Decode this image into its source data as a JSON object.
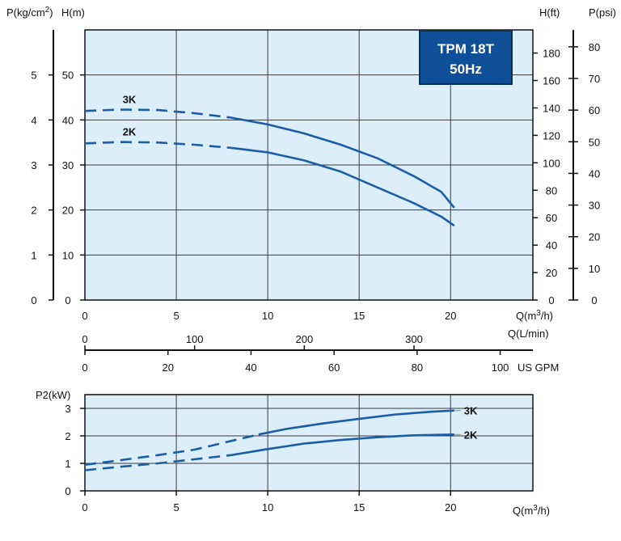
{
  "colors": {
    "plot_bg": "#dceefa",
    "grid": "#3a3a3a",
    "curve": "#1a5ea8",
    "badge_bg": "#0f4f98",
    "axis": "#111111"
  },
  "badge": {
    "model": "TPM 18T",
    "frequency": "50Hz"
  },
  "chart_data": [
    {
      "type": "line",
      "name_hint": "head-curve",
      "xlabel": "Q(m3/h)",
      "x_ticks": [
        0,
        5,
        10,
        15,
        20
      ],
      "xlim": [
        0,
        24.5
      ],
      "left_axes": [
        {
          "title": "P(kg/cm2)",
          "ticks": [
            0,
            1,
            2,
            3,
            4,
            5
          ],
          "range": [
            0,
            6
          ]
        },
        {
          "title": "H(m)",
          "ticks": [
            0,
            10,
            20,
            30,
            40,
            50
          ],
          "range": [
            0,
            60
          ]
        }
      ],
      "right_axes": [
        {
          "title": "H(ft)",
          "ticks": [
            0,
            20,
            40,
            60,
            80,
            100,
            120,
            140,
            160,
            180
          ],
          "range": [
            0,
            196.85
          ]
        },
        {
          "title": "P(psi)",
          "ticks": [
            0,
            10,
            20,
            30,
            40,
            50,
            60,
            70,
            80
          ],
          "range": [
            0,
            85.34
          ]
        }
      ],
      "secondary_x_axes": [
        {
          "unit": "Q(L/min)",
          "ticks": [
            0,
            100,
            200,
            300
          ]
        },
        {
          "unit": "US GPM",
          "ticks": [
            0,
            20,
            40,
            60,
            80,
            100
          ]
        }
      ],
      "grid": true,
      "series": [
        {
          "name": "3K",
          "dashed": {
            "x": [
              0,
              2,
              4,
              6,
              8
            ],
            "y": [
              42,
              42.3,
              42.2,
              41.5,
              40.5
            ]
          },
          "solid": {
            "x": [
              8,
              10,
              12,
              14,
              16,
              18,
              19.5,
              20.2
            ],
            "y": [
              40.5,
              39,
              37,
              34.5,
              31.5,
              27.5,
              24,
              20.5
            ]
          }
        },
        {
          "name": "2K",
          "dashed": {
            "x": [
              0,
              2,
              4,
              6,
              8
            ],
            "y": [
              34.8,
              35.1,
              35,
              34.5,
              33.8
            ]
          },
          "solid": {
            "x": [
              8,
              10,
              12,
              14,
              16,
              18,
              19.5,
              20.2
            ],
            "y": [
              33.8,
              32.8,
              31,
              28.5,
              25,
              21.5,
              18.5,
              16.5
            ]
          }
        }
      ]
    },
    {
      "type": "line",
      "name_hint": "power-curve",
      "xlabel": "Q(m3/h)",
      "ylabel": "P2(kW)",
      "x_ticks": [
        0,
        5,
        10,
        15,
        20
      ],
      "xlim": [
        0,
        24.5
      ],
      "y_ticks": [
        0,
        1,
        2,
        3
      ],
      "ylim": [
        0,
        3.5
      ],
      "grid": true,
      "series": [
        {
          "name": "3K",
          "dashed": {
            "x": [
              0,
              2,
              4,
              6,
              9.5
            ],
            "y": [
              0.95,
              1.12,
              1.3,
              1.5,
              2.05
            ]
          },
          "solid": {
            "x": [
              9.5,
              11,
              13,
              15,
              17,
              19,
              20.2
            ],
            "y": [
              2.05,
              2.25,
              2.45,
              2.62,
              2.78,
              2.88,
              2.92
            ]
          }
        },
        {
          "name": "2K",
          "dashed": {
            "x": [
              0,
              2,
              4,
              6,
              8
            ],
            "y": [
              0.75,
              0.88,
              1.0,
              1.15,
              1.3
            ]
          },
          "solid": {
            "x": [
              8,
              10,
              12,
              14,
              16,
              18,
              20.2
            ],
            "y": [
              1.3,
              1.52,
              1.72,
              1.85,
              1.95,
              2.02,
              2.05
            ]
          }
        }
      ]
    }
  ]
}
